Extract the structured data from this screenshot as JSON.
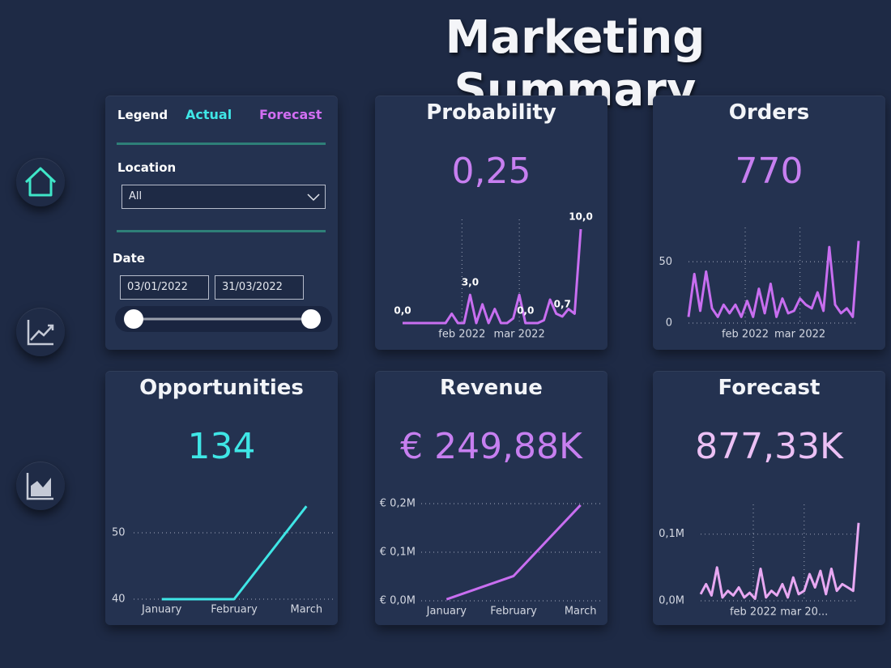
{
  "title": "Marketing Summary",
  "filters": {
    "legend": "Legend",
    "actual": "Actual",
    "forecast": "Forecast",
    "location_label": "Location",
    "location_value": "All",
    "date_label": "Date",
    "date_start": "03/01/2022",
    "date_end": "31/03/2022"
  },
  "chart_data": [
    {
      "type": "line",
      "title": "Probability",
      "kpi": "0,25",
      "kpi_color": "#c77ff0",
      "color": "#c86ef0",
      "x": [
        3,
        6,
        9,
        12,
        15,
        18,
        21,
        24,
        27,
        30,
        33,
        36,
        39,
        42,
        45,
        48,
        51,
        54,
        57,
        60,
        63,
        66,
        69,
        72,
        75,
        78,
        81,
        84,
        87,
        90
      ],
      "values": [
        0,
        0,
        0,
        0,
        0,
        0,
        0,
        0,
        1,
        0,
        0,
        3,
        0,
        2,
        0,
        1.5,
        0,
        0,
        0.5,
        3,
        0,
        0,
        0,
        0.3,
        2.5,
        1,
        0.7,
        1.5,
        1,
        10
      ],
      "value_labels": [
        "0,0",
        null,
        null,
        null,
        null,
        null,
        null,
        null,
        null,
        null,
        null,
        "3,0",
        null,
        null,
        null,
        null,
        null,
        null,
        null,
        null,
        "0,0",
        null,
        null,
        null,
        null,
        null,
        "0,7",
        null,
        null,
        "10,0"
      ],
      "xlim": [
        3,
        90
      ],
      "ylim": [
        0,
        10
      ],
      "xticks": [
        {
          "value": 32,
          "label": "feb 2022"
        },
        {
          "value": 60,
          "label": "mar 2022"
        }
      ],
      "grid": true
    },
    {
      "type": "line",
      "title": "Orders",
      "kpi": "770",
      "kpi_color": "#c77ff0",
      "color": "#c86ef0",
      "x": [
        3,
        6,
        9,
        12,
        15,
        18,
        21,
        24,
        27,
        30,
        33,
        36,
        39,
        42,
        45,
        48,
        51,
        54,
        57,
        60,
        63,
        66,
        69,
        72,
        75,
        78,
        81,
        84,
        87,
        90
      ],
      "values": [
        5,
        40,
        10,
        42,
        12,
        5,
        15,
        8,
        15,
        5,
        18,
        5,
        28,
        8,
        32,
        5,
        20,
        8,
        10,
        20,
        15,
        12,
        25,
        10,
        62,
        15,
        8,
        12,
        5,
        67
      ],
      "xlim": [
        3,
        90
      ],
      "ylim": [
        0,
        70
      ],
      "yticks": [
        0,
        50
      ],
      "xticks": [
        {
          "value": 32,
          "label": "feb 2022"
        },
        {
          "value": 60,
          "label": "mar 2022"
        }
      ],
      "grid": true
    },
    {
      "type": "line",
      "title": "Opportunities",
      "kpi": "134",
      "kpi_color": "#3fe6e6",
      "color": "#3fe6e6",
      "categories": [
        "January",
        "February",
        "March"
      ],
      "values": [
        40,
        40,
        54
      ],
      "ylim": [
        40,
        55
      ],
      "yticks": [
        40,
        50
      ],
      "grid": true
    },
    {
      "type": "line",
      "title": "Revenue",
      "kpi": "€ 249,88K",
      "kpi_color": "#c77ff0",
      "color": "#c86ef0",
      "categories": [
        "January",
        "February",
        "March"
      ],
      "values": [
        3000,
        51000,
        197000
      ],
      "ylim": [
        0,
        205000
      ],
      "yticks": [
        {
          "value": 0,
          "label": "€ 0,0M"
        },
        {
          "value": 100000,
          "label": "€ 0,1M"
        },
        {
          "value": 200000,
          "label": "€ 0,2M"
        }
      ],
      "grid": true
    },
    {
      "type": "line",
      "title": "Forecast",
      "kpi": "877,33K",
      "kpi_color": "#ecc0f5",
      "color": "#e8a8f2",
      "x": [
        3,
        6,
        9,
        12,
        15,
        18,
        21,
        24,
        27,
        30,
        33,
        36,
        39,
        42,
        45,
        48,
        51,
        54,
        57,
        60,
        63,
        66,
        69,
        72,
        75,
        78,
        81,
        84,
        87,
        90
      ],
      "values": [
        10000,
        25000,
        8000,
        50000,
        5000,
        15000,
        8000,
        20000,
        5000,
        12000,
        3000,
        48000,
        5000,
        15000,
        8000,
        25000,
        5000,
        35000,
        10000,
        15000,
        40000,
        20000,
        45000,
        10000,
        48000,
        15000,
        25000,
        20000,
        15000,
        117000
      ],
      "xlim": [
        3,
        90
      ],
      "ylim": [
        0,
        130000
      ],
      "yticks": [
        {
          "value": 0,
          "label": "0,0M"
        },
        {
          "value": 100000,
          "label": "0,1M"
        }
      ],
      "xticks": [
        {
          "value": 32,
          "label": "feb 2022"
        },
        {
          "value": 60,
          "label": "mar 20..."
        }
      ],
      "grid": true
    }
  ]
}
